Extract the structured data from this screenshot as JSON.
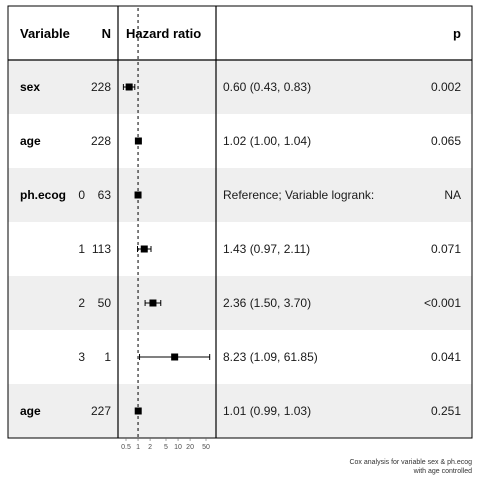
{
  "headers": {
    "variable": "Variable",
    "n": "N",
    "hazard_ratio": "Hazard ratio",
    "p": "p"
  },
  "caption": [
    "Cox analysis for variable sex & ph.ecog",
    "with age controlled"
  ],
  "chart_data": {
    "type": "forest",
    "x_scale": "log",
    "reference_line": 1,
    "x_ticks": [
      "0.5",
      "1",
      "2",
      "5",
      "10",
      "20",
      "50"
    ],
    "rows": [
      {
        "variable": "sex",
        "level": "",
        "n": "228",
        "hr": 0.6,
        "lo": 0.43,
        "hi": 0.83,
        "estimate": "0.60 (0.43, 0.83)",
        "p": "0.002",
        "shaded": true
      },
      {
        "variable": "age",
        "level": "",
        "n": "228",
        "hr": 1.02,
        "lo": 1.0,
        "hi": 1.04,
        "estimate": "1.02 (1.00, 1.04)",
        "p": "0.065",
        "shaded": false
      },
      {
        "variable": "ph.ecog",
        "level": "0",
        "n": "63",
        "hr": 1,
        "lo": 1,
        "hi": 1,
        "estimate": "Reference;  Variable logrank:",
        "p": "NA",
        "shaded": true
      },
      {
        "variable": "",
        "level": "1",
        "n": "113",
        "hr": 1.43,
        "lo": 0.97,
        "hi": 2.11,
        "estimate": "1.43 (0.97, 2.11)",
        "p": "0.071",
        "shaded": false
      },
      {
        "variable": "",
        "level": "2",
        "n": "50",
        "hr": 2.36,
        "lo": 1.5,
        "hi": 3.7,
        "estimate": "2.36 (1.50, 3.70)",
        "p": "<0.001",
        "shaded": true
      },
      {
        "variable": "",
        "level": "3",
        "n": "1",
        "hr": 8.23,
        "lo": 1.09,
        "hi": 61.85,
        "estimate": "8.23 (1.09, 61.85)",
        "p": "0.041",
        "shaded": false
      },
      {
        "variable": "age",
        "level": "",
        "n": "227",
        "hr": 1.01,
        "lo": 0.99,
        "hi": 1.03,
        "estimate": "1.01 (0.99, 1.03)",
        "p": "0.251",
        "shaded": true
      }
    ]
  }
}
